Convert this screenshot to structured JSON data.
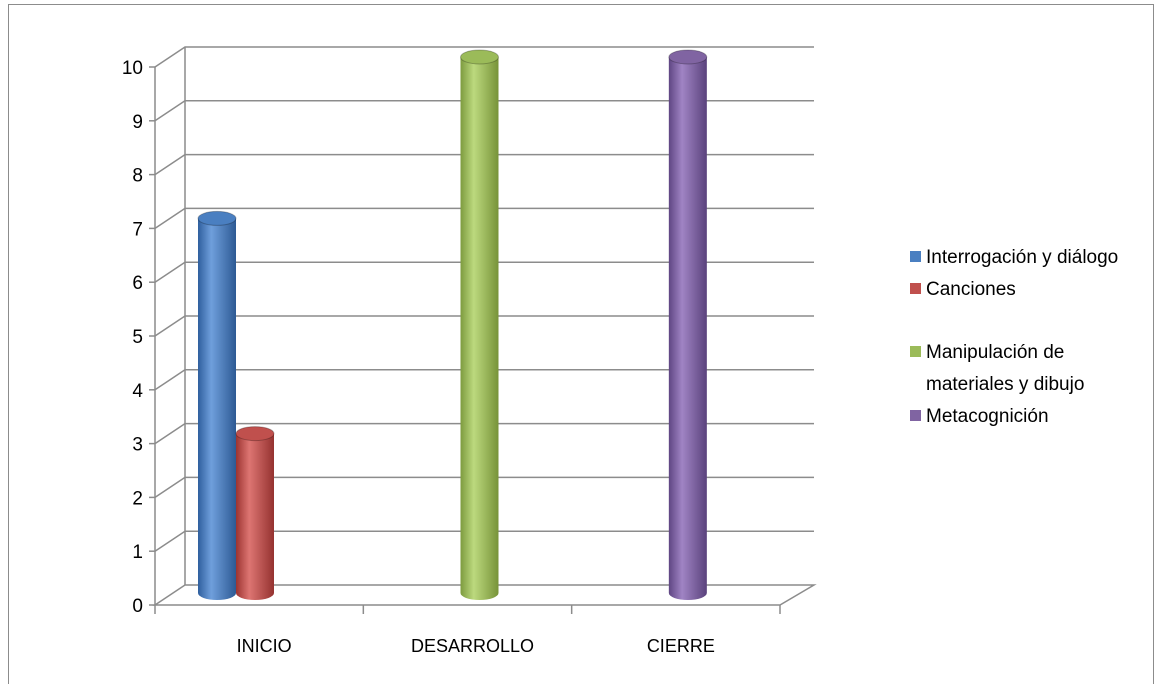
{
  "chart_data": {
    "type": "bar",
    "title": "",
    "xlabel": "",
    "ylabel": "",
    "categories": [
      "INICIO",
      "DESARROLLO",
      "CIERRE"
    ],
    "ylim": [
      0,
      10
    ],
    "yticks": [
      "0",
      "1",
      "2",
      "3",
      "4",
      "5",
      "6",
      "7",
      "8",
      "9",
      "10"
    ],
    "grid": true,
    "legend_position": "right",
    "style": "3d-cylinder",
    "series": [
      {
        "name": "Interrogación y diálogo",
        "color": "#4a7fc1",
        "values": [
          7,
          null,
          null
        ]
      },
      {
        "name": "Canciones",
        "color": "#c0504d",
        "values": [
          3,
          null,
          null
        ]
      },
      {
        "name": "Manipulación de materiales y dibujo",
        "color": "#9bbb59",
        "values": [
          null,
          10,
          null
        ]
      },
      {
        "name": "Metacognición",
        "color": "#8064a2",
        "values": [
          null,
          null,
          10
        ]
      }
    ]
  },
  "legend": {
    "items": [
      {
        "label": "Interrogación y diálogo",
        "color": "#4a7fc1"
      },
      {
        "label": "Canciones",
        "color": "#c0504d"
      },
      {
        "label": "Manipulación de materiales y dibujo",
        "color": "#9bbb59"
      },
      {
        "label": "Metacognición",
        "color": "#8064a2"
      }
    ]
  }
}
